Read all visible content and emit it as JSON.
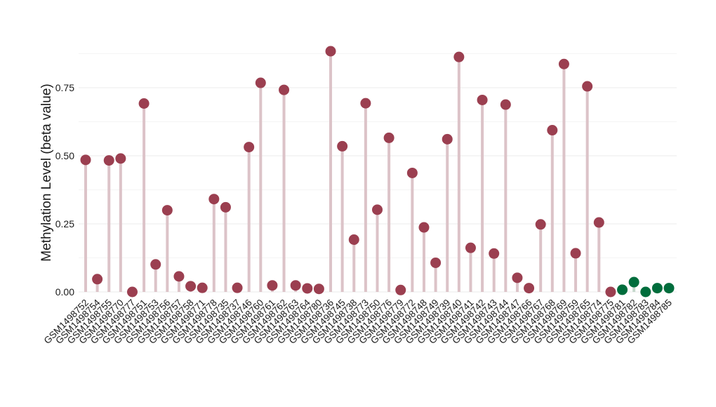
{
  "chart_data": {
    "type": "lollipop",
    "title": "",
    "xlabel": "",
    "ylabel": "Methylation Level (beta value)",
    "ylim": [
      0,
      0.9
    ],
    "yticks": [
      "0.00",
      "0.25",
      "0.50",
      "0.75"
    ],
    "grid": true,
    "legend": "none",
    "colors": {
      "group1": "#9b3f50",
      "group2": "#006d3c",
      "stem_group1": "#dcc3c8",
      "stem_group2": "#c5d8cc"
    },
    "categories": [
      "GSM1498752",
      "GSM1498754",
      "GSM1498755",
      "GSM1498770",
      "GSM1498777",
      "GSM1498751",
      "GSM1498753",
      "GSM1498756",
      "GSM1498757",
      "GSM1498758",
      "GSM1498771",
      "GSM1498778",
      "GSM1498735",
      "GSM1498737",
      "GSM1498746",
      "GSM1498760",
      "GSM1498761",
      "GSM1498762",
      "GSM1498763",
      "GSM1498764",
      "GSM1498780",
      "GSM1498736",
      "GSM1498745",
      "GSM1498738",
      "GSM1498773",
      "GSM1498750",
      "GSM1498776",
      "GSM1498779",
      "GSM1498772",
      "GSM1498748",
      "GSM1498749",
      "GSM1498739",
      "GSM1498740",
      "GSM1498741",
      "GSM1498742",
      "GSM1498743",
      "GSM1498744",
      "GSM1498747",
      "GSM1498766",
      "GSM1498767",
      "GSM1498768",
      "GSM1498769",
      "GSM1498759",
      "GSM1498765",
      "GSM1498774",
      "GSM1498775",
      "GSM1498781",
      "GSM1498782",
      "GSM1498783",
      "GSM1498784",
      "GSM1498785"
    ],
    "values": [
      0.485,
      0.047,
      0.483,
      0.49,
      0.0,
      0.692,
      0.101,
      0.3,
      0.057,
      0.021,
      0.015,
      0.341,
      0.311,
      0.015,
      0.532,
      0.768,
      0.024,
      0.742,
      0.024,
      0.013,
      0.011,
      0.884,
      0.535,
      0.192,
      0.693,
      0.302,
      0.566,
      0.007,
      0.437,
      0.237,
      0.107,
      0.561,
      0.863,
      0.162,
      0.705,
      0.141,
      0.688,
      0.052,
      0.014,
      0.248,
      0.594,
      0.837,
      0.142,
      0.755,
      0.255,
      0.0,
      0.008,
      0.036,
      0.0,
      0.014,
      0.014
    ],
    "groups": [
      1,
      1,
      1,
      1,
      1,
      1,
      1,
      1,
      1,
      1,
      1,
      1,
      1,
      1,
      1,
      1,
      1,
      1,
      1,
      1,
      1,
      1,
      1,
      1,
      1,
      1,
      1,
      1,
      1,
      1,
      1,
      1,
      1,
      1,
      1,
      1,
      1,
      1,
      1,
      1,
      1,
      1,
      1,
      1,
      1,
      1,
      2,
      2,
      2,
      2,
      2
    ]
  }
}
